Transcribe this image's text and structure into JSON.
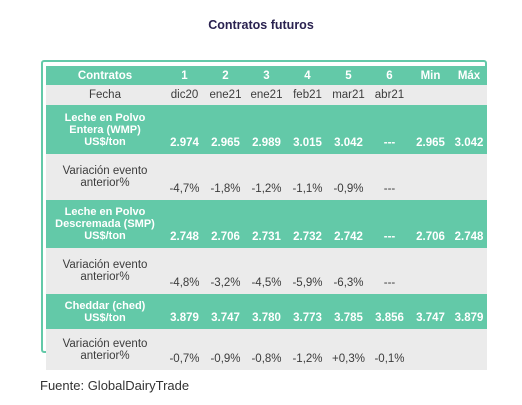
{
  "title": "Contratos futuros",
  "header": [
    "Contratos",
    "1",
    "2",
    "3",
    "4",
    "5",
    "6",
    "Min",
    "Máx"
  ],
  "fecha": {
    "label": "Fecha",
    "values": [
      "dic20",
      "ene21",
      "ene21",
      "feb21",
      "mar21",
      "abr21",
      "",
      ""
    ]
  },
  "wmp": {
    "label_lines": [
      "Leche en Polvo",
      "Entera (WMP)",
      "US$/ton"
    ],
    "values": [
      "2.974",
      "2.965",
      "2.989",
      "3.015",
      "3.042",
      "---",
      "2.965",
      "3.042"
    ]
  },
  "wmp_var": {
    "label_lines": [
      "Variación evento",
      "anterior%"
    ],
    "values": [
      "-4,7%",
      "-1,8%",
      "-1,2%",
      "-1,1%",
      "-0,9%",
      "---",
      "",
      ""
    ]
  },
  "smp": {
    "label_lines": [
      "Leche en Polvo",
      "Descremada (SMP)",
      "US$/ton"
    ],
    "values": [
      "2.748",
      "2.706",
      "2.731",
      "2.732",
      "2.742",
      "---",
      "2.706",
      "2.748"
    ]
  },
  "smp_var": {
    "label_lines": [
      "Variación evento",
      "anterior%"
    ],
    "values": [
      "-4,8%",
      "-3,2%",
      "-4,5%",
      "-5,9%",
      "-6,3%",
      "---",
      "",
      ""
    ]
  },
  "ched": {
    "label_lines": [
      "Cheddar (ched)",
      "US$/ton"
    ],
    "values": [
      "3.879",
      "3.747",
      "3.780",
      "3.773",
      "3.785",
      "3.856",
      "3.747",
      "3.879"
    ]
  },
  "ched_var": {
    "label_lines": [
      "Variación evento",
      "anterior%"
    ],
    "values": [
      "-0,7%",
      "-0,9%",
      "-0,8%",
      "-1,2%",
      "+0,3%",
      "-0,1%",
      "",
      ""
    ]
  },
  "footer": "Fuente: GlobalDairyTrade"
}
